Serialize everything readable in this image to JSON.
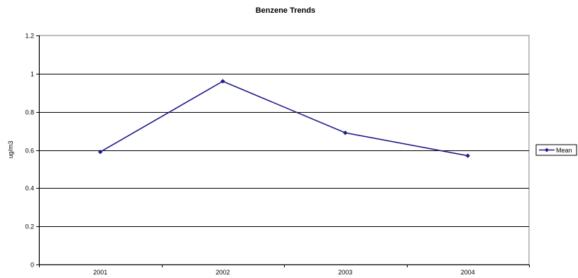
{
  "chart_data": {
    "type": "line",
    "title": "Benzene Trends",
    "xlabel": "",
    "ylabel": "ug/m3",
    "categories": [
      "2001",
      "2002",
      "2003",
      "2004"
    ],
    "series": [
      {
        "name": "Mean",
        "values": [
          0.59,
          0.96,
          0.69,
          0.57
        ],
        "color": "#1f1a8c"
      }
    ],
    "ylim": [
      0,
      1.2
    ],
    "yticks": [
      "0",
      "0.2",
      "0.4",
      "0.6",
      "0.8",
      "1",
      "1.2"
    ],
    "grid": true,
    "legend_position": "right",
    "colors": {
      "gridline": "#000000",
      "plot_border": "#808080",
      "line": "#1f1a8c"
    }
  }
}
